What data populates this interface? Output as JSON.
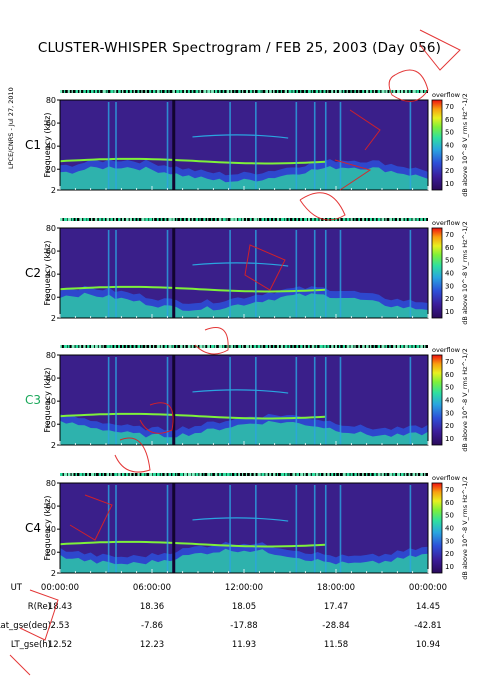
{
  "title": "CLUSTER-WHISPER Spectrogram / FEB 25, 2003 (Day 056)",
  "side_label": "LPCE/CNRS - Jul 27, 2010",
  "colors": {
    "plot_background": "#3a1f8a",
    "colorscale": [
      "#2a0a5a",
      "#3b1d9a",
      "#2d4fd8",
      "#2aa5e0",
      "#2fe0a0",
      "#7ef03a",
      "#e8f020",
      "#f8a010",
      "#f01010"
    ],
    "satellite_label_c3": "#1aa85a",
    "overlay_mark": "#e02020"
  },
  "chart_data": [
    {
      "type": "heatmap",
      "panel": "C1",
      "satellite_label": "C1",
      "ylabel": "Frequency (kHz)",
      "yticks": [
        "80",
        "60",
        "40",
        "20",
        "2"
      ],
      "ylim": [
        2,
        80
      ],
      "colorbar_label": "dB above 10^-8 V_rms Hz^-1/2",
      "colorbar_note": "overflow",
      "colorbar_ticks": [
        "70",
        "60",
        "50",
        "40",
        "30",
        "20",
        "10"
      ],
      "clim": [
        10,
        70
      ]
    },
    {
      "type": "heatmap",
      "panel": "C2",
      "satellite_label": "C2",
      "ylabel": "Frequency (kHz)",
      "yticks": [
        "80",
        "60",
        "40",
        "20",
        "2"
      ],
      "ylim": [
        2,
        80
      ],
      "colorbar_label": "dB above 10^-8 V_rms Hz^-1/2",
      "colorbar_note": "overflow",
      "colorbar_ticks": [
        "70",
        "60",
        "50",
        "40",
        "30",
        "20",
        "10"
      ],
      "clim": [
        10,
        70
      ]
    },
    {
      "type": "heatmap",
      "panel": "C3",
      "satellite_label": "C3",
      "ylabel": "Frequency (kHz)",
      "yticks": [
        "80",
        "60",
        "40",
        "20",
        "2"
      ],
      "ylim": [
        2,
        80
      ],
      "colorbar_label": "dB above 10^-8 V_rms Hz^-1/2",
      "colorbar_note": "overflow",
      "colorbar_ticks": [
        "70",
        "60",
        "50",
        "40",
        "30",
        "20",
        "10"
      ],
      "clim": [
        10,
        70
      ]
    },
    {
      "type": "heatmap",
      "panel": "C4",
      "satellite_label": "C4",
      "ylabel": "Frequency (kHz)",
      "yticks": [
        "80",
        "60",
        "40",
        "20",
        "2"
      ],
      "ylim": [
        2,
        80
      ],
      "colorbar_label": "dB above 10^-8 V_rms Hz^-1/2",
      "colorbar_note": "overflow",
      "colorbar_ticks": [
        "70",
        "60",
        "50",
        "40",
        "30",
        "20",
        "10"
      ],
      "clim": [
        10,
        70
      ]
    }
  ],
  "x_axis": {
    "ticks": [
      "00:00:00",
      "06:00:00",
      "12:00:00",
      "18:00:00",
      "00:00:00"
    ],
    "xlim_hours": [
      0,
      24
    ]
  },
  "ephemeris": {
    "labels": [
      "UT",
      "R(Re)",
      "Lat_gse(deg)",
      "LT_gse(h)"
    ],
    "rows": [
      [
        "00:00:00",
        "06:00:00",
        "12:00:00",
        "18:00:00",
        "00:00:00"
      ],
      [
        "18.43",
        "18.36",
        "18.05",
        "17.47",
        "14.45"
      ],
      [
        "2.53",
        "-7.86",
        "-17.88",
        "-28.84",
        "-42.81"
      ],
      [
        "12.52",
        "12.23",
        "11.93",
        "11.58",
        "10.94"
      ]
    ]
  }
}
